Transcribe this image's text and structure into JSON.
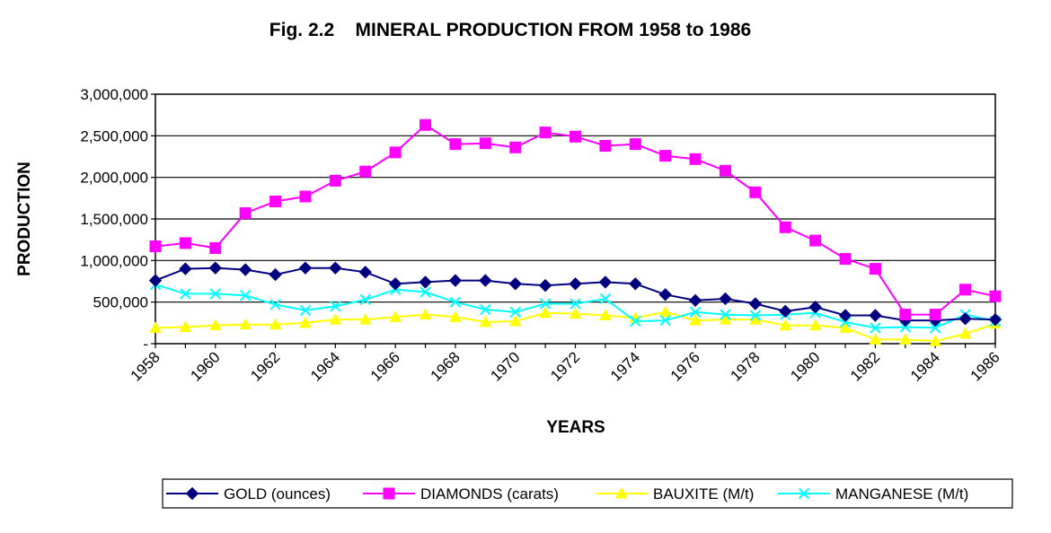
{
  "chart_data": {
    "type": "line",
    "title": "Fig. 2.2    MINERAL PRODUCTION FROM 1958 to 1986",
    "xlabel": "YEARS",
    "ylabel": "PRODUCTION",
    "x": [
      1958,
      1959,
      1960,
      1961,
      1962,
      1963,
      1964,
      1965,
      1966,
      1967,
      1968,
      1969,
      1970,
      1971,
      1972,
      1973,
      1974,
      1975,
      1976,
      1977,
      1978,
      1979,
      1980,
      1981,
      1982,
      1983,
      1984,
      1985,
      1986
    ],
    "x_tick_labels": [
      "1958",
      "1960",
      "1962",
      "1964",
      "1966",
      "1968",
      "1970",
      "1972",
      "1974",
      "1976",
      "1978",
      "1980",
      "1982",
      "1984",
      "1986"
    ],
    "y_tick_labels": [
      "-",
      "500,000",
      "1,000,000",
      "1,500,000",
      "2,000,000",
      "2,500,000",
      "3,000,000"
    ],
    "ylim": [
      0,
      3000000
    ],
    "y_gridlines": true,
    "legend_position": "bottom",
    "series": [
      {
        "name": "GOLD (ounces)",
        "color": "#000080",
        "marker": "diamond",
        "values": [
          760000,
          900000,
          910000,
          890000,
          830000,
          910000,
          910000,
          860000,
          720000,
          740000,
          760000,
          760000,
          720000,
          700000,
          720000,
          740000,
          720000,
          590000,
          520000,
          540000,
          480000,
          390000,
          440000,
          340000,
          340000,
          280000,
          280000,
          300000,
          290000
        ]
      },
      {
        "name": "DIAMONDS (carats)",
        "color": "#ff00ff",
        "marker": "square",
        "values": [
          1170000,
          1210000,
          1150000,
          1570000,
          1710000,
          1770000,
          1960000,
          2070000,
          2300000,
          2630000,
          2400000,
          2410000,
          2360000,
          2540000,
          2490000,
          2380000,
          2400000,
          2260000,
          2220000,
          2080000,
          1820000,
          1400000,
          1240000,
          1020000,
          900000,
          350000,
          350000,
          650000,
          570000
        ]
      },
      {
        "name": "BAUXITE (M/t)",
        "color": "#ffff00",
        "marker": "triangle",
        "values": [
          190000,
          200000,
          220000,
          230000,
          230000,
          250000,
          290000,
          290000,
          320000,
          350000,
          320000,
          260000,
          270000,
          370000,
          360000,
          340000,
          310000,
          380000,
          280000,
          290000,
          290000,
          220000,
          220000,
          190000,
          50000,
          50000,
          30000,
          120000,
          240000
        ]
      },
      {
        "name": "MANGANESE (M/t)",
        "color": "#00ffff",
        "marker": "x",
        "values": [
          710000,
          600000,
          600000,
          580000,
          470000,
          400000,
          450000,
          530000,
          650000,
          620000,
          500000,
          410000,
          380000,
          480000,
          480000,
          540000,
          270000,
          280000,
          380000,
          350000,
          340000,
          350000,
          370000,
          260000,
          190000,
          200000,
          190000,
          350000,
          270000
        ]
      }
    ]
  }
}
